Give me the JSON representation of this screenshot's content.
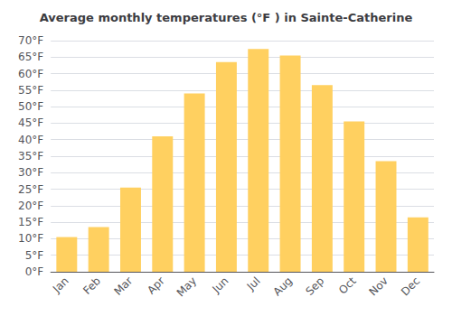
{
  "chart_data": {
    "type": "bar",
    "title": "Average monthly temperatures (°F ) in Sainte-Catherine",
    "categories": [
      "Jan",
      "Feb",
      "Mar",
      "Apr",
      "May",
      "Jun",
      "Jul",
      "Aug",
      "Sep",
      "Oct",
      "Nov",
      "Dec"
    ],
    "values": [
      10.5,
      13.5,
      25.5,
      41.0,
      54.0,
      63.5,
      67.5,
      65.5,
      56.5,
      45.5,
      33.5,
      16.5
    ],
    "color": "#FFD060",
    "ylim": [
      0,
      70
    ],
    "yticks": [
      {
        "value": 0,
        "label": "0°F"
      },
      {
        "value": 5,
        "label": "5°F"
      },
      {
        "value": 10,
        "label": "10°F"
      },
      {
        "value": 15,
        "label": "15°F"
      },
      {
        "value": 20,
        "label": "20°F"
      },
      {
        "value": 25,
        "label": "25°F"
      },
      {
        "value": 30,
        "label": "30°F"
      },
      {
        "value": 35,
        "label": "35°F"
      },
      {
        "value": 40,
        "label": "40°F"
      },
      {
        "value": 45,
        "label": "45°F"
      },
      {
        "value": 50,
        "label": "50°F"
      },
      {
        "value": 55,
        "label": "55°F"
      },
      {
        "value": 60,
        "label": "60°F"
      },
      {
        "value": 65,
        "label": "65°F"
      },
      {
        "value": 70,
        "label": "70°F"
      }
    ],
    "grid": true
  }
}
